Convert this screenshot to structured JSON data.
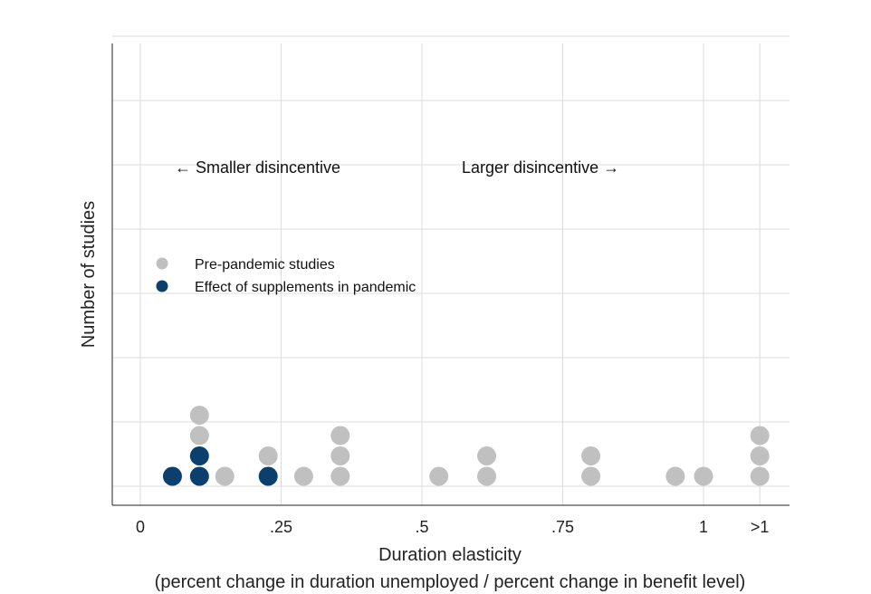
{
  "chart_data": {
    "type": "scatter",
    "style": "dot-plot",
    "xlabel": "Duration elasticity",
    "xlabel_note": "(percent change in duration unemployed / percent change in benefit level)",
    "ylabel": "Number of studies",
    "xlim": [
      -0.05,
      1.15
    ],
    "ylim": [
      0,
      7.2
    ],
    "grid": true,
    "x_ticks": [
      {
        "value": 0,
        "label": "0"
      },
      {
        "value": 0.25,
        "label": ".25"
      },
      {
        "value": 0.5,
        "label": ".5"
      },
      {
        "value": 0.75,
        "label": ".75"
      },
      {
        "value": 1.0,
        "label": "1"
      },
      {
        "value": 1.1,
        "label": ">1"
      }
    ],
    "y_gridlines": [
      0,
      1,
      2,
      3,
      4,
      5,
      6,
      7
    ],
    "annotations": {
      "left": "← Smaller disincentive",
      "right": "Larger disincentive →"
    },
    "legend": {
      "placement": "left-middle",
      "items": [
        {
          "label": "Pre-pandemic studies",
          "color": "#c0c0c0"
        },
        {
          "label": "Effect of supplements in pandemic",
          "color": "#0a3f6e"
        }
      ]
    },
    "series": [
      {
        "name": "Pre-pandemic studies",
        "color": "#c0c0c0",
        "points": [
          {
            "x": 0.105,
            "y": 3
          },
          {
            "x": 0.105,
            "y": 4
          },
          {
            "x": 0.15,
            "y": 1
          },
          {
            "x": 0.227,
            "y": 2
          },
          {
            "x": 0.29,
            "y": 1
          },
          {
            "x": 0.355,
            "y": 1
          },
          {
            "x": 0.355,
            "y": 2
          },
          {
            "x": 0.355,
            "y": 3
          },
          {
            "x": 0.53,
            "y": 1
          },
          {
            "x": 0.615,
            "y": 1
          },
          {
            "x": 0.615,
            "y": 2
          },
          {
            "x": 0.8,
            "y": 1
          },
          {
            "x": 0.8,
            "y": 2
          },
          {
            "x": 0.95,
            "y": 1
          },
          {
            "x": 1.0,
            "y": 1
          },
          {
            "x": 1.1,
            "y": 1
          },
          {
            "x": 1.1,
            "y": 2
          },
          {
            "x": 1.1,
            "y": 3
          }
        ]
      },
      {
        "name": "Effect of supplements in pandemic",
        "color": "#0a3f6e",
        "points": [
          {
            "x": 0.057,
            "y": 1
          },
          {
            "x": 0.105,
            "y": 1
          },
          {
            "x": 0.105,
            "y": 2
          },
          {
            "x": 0.227,
            "y": 1
          }
        ]
      }
    ]
  }
}
